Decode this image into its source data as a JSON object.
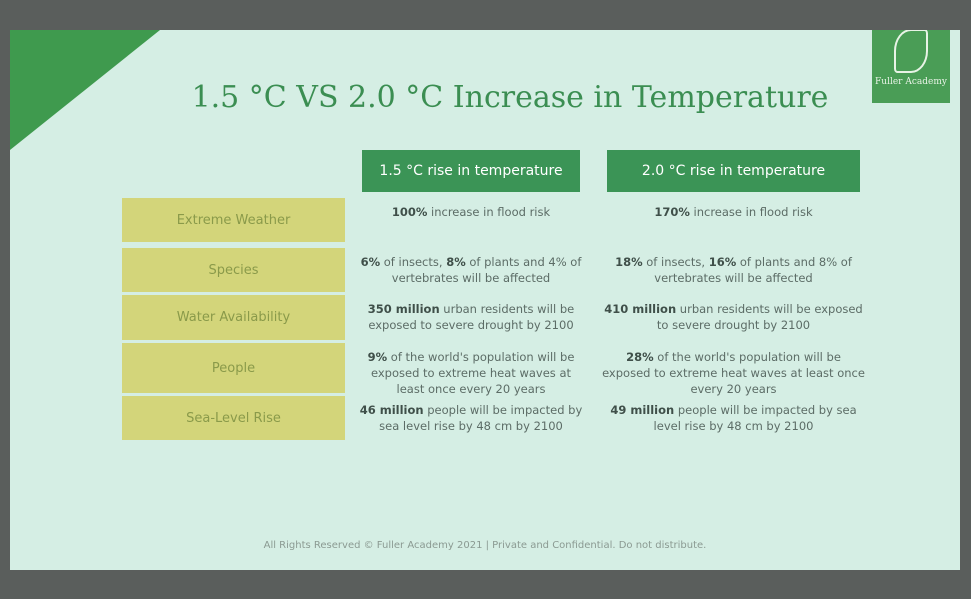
{
  "logo": {
    "name": "Fuller Academy"
  },
  "title": "1.5 °C VS 2.0 °C Increase in Temperature",
  "table": {
    "headers": [
      "1.5 °C rise in temperature",
      "2.0 °C rise in temperature"
    ],
    "rows": [
      {
        "label": "Extreme Weather",
        "cells": [
          [
            {
              "text": "100%",
              "strong": true
            },
            {
              "text": " increase in flood risk"
            }
          ],
          [
            {
              "text": "170%",
              "strong": true
            },
            {
              "text": " increase in flood risk"
            }
          ]
        ]
      },
      {
        "label": "Species",
        "cells": [
          [
            {
              "text": "6%",
              "strong": true
            },
            {
              "text": " of insects, "
            },
            {
              "text": "8%",
              "strong": true
            },
            {
              "text": " of plants and 4% of vertebrates will be affected"
            }
          ],
          [
            {
              "text": "18%",
              "strong": true
            },
            {
              "text": " of insects, "
            },
            {
              "text": "16%",
              "strong": true
            },
            {
              "text": " of plants and 8% of vertebrates will be affected"
            }
          ]
        ]
      },
      {
        "label": "Water Availability",
        "cells": [
          [
            {
              "text": "350 million",
              "strong": true
            },
            {
              "text": " urban residents will be exposed to severe drought by 2100"
            }
          ],
          [
            {
              "text": "410 million",
              "strong": true
            },
            {
              "text": " urban residents will be exposed to severe drought by 2100"
            }
          ]
        ]
      },
      {
        "label": "People",
        "cells": [
          [
            {
              "text": "9%",
              "strong": true
            },
            {
              "text": " of the world's population will be exposed to extreme heat waves at least once every 20 years"
            }
          ],
          [
            {
              "text": "28%",
              "strong": true
            },
            {
              "text": " of the world's population will be exposed to extreme heat waves at least once every 20 years"
            }
          ]
        ]
      },
      {
        "label": "Sea-Level Rise",
        "cells": [
          [
            {
              "text": "46 million",
              "strong": true
            },
            {
              "text": " people will be impacted by sea level rise by 48 cm by 2100"
            }
          ],
          [
            {
              "text": "49 million",
              "strong": true
            },
            {
              "text": " people will be impacted by sea level rise by 48 cm by 2100"
            }
          ]
        ]
      }
    ]
  },
  "footer": "All Rights Reserved © Fuller Academy 2021 | Private and Confidential. Do not distribute."
}
